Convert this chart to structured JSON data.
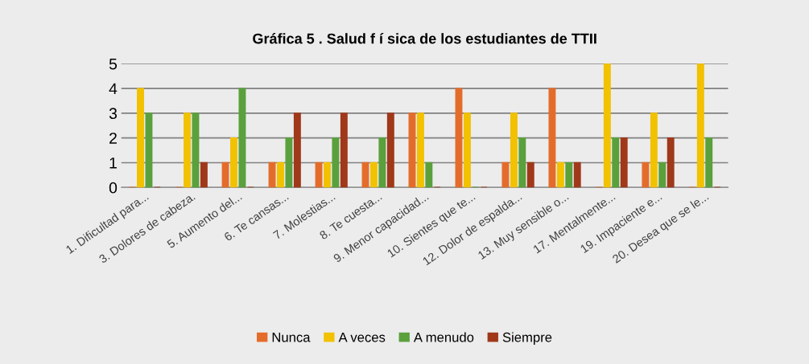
{
  "chart_data": {
    "type": "bar",
    "title": "Gráfica 5 . Salud f í sica de los estudiantes de TTII",
    "categories": [
      "1. Dificultad para...",
      "3. Dolores de cabeza.",
      "5. Aumento del...",
      "6. Te cansas...",
      "7. Molestias...",
      "8. Te cuesta...",
      "9. Menor capacidad...",
      "10. Sientes que te...",
      "12. Dolor de espalda...",
      "13. Muy sensible o...",
      "17. Mentalmente...",
      "19. Impaciente e...",
      "20. Desea que se le..."
    ],
    "series": [
      {
        "name": "Nunca",
        "color": "#e46c2a",
        "values": [
          0,
          0,
          1,
          1,
          1,
          1,
          3,
          4,
          1,
          4,
          0,
          1,
          0
        ]
      },
      {
        "name": "A veces",
        "color": "#f2c100",
        "values": [
          4,
          3,
          2,
          1,
          1,
          1,
          3,
          3,
          3,
          1,
          5,
          3,
          5
        ]
      },
      {
        "name": "A menudo",
        "color": "#5aa03c",
        "values": [
          3,
          3,
          4,
          2,
          2,
          2,
          1,
          0,
          2,
          1,
          2,
          1,
          2
        ]
      },
      {
        "name": "Siempre",
        "color": "#a0381a",
        "values": [
          0,
          1,
          0,
          3,
          3,
          3,
          0,
          0,
          1,
          1,
          2,
          2,
          0
        ]
      }
    ],
    "ylim": [
      0,
      5
    ],
    "yticks": [
      0,
      1,
      2,
      3,
      4,
      5
    ],
    "grid": "y",
    "legend": "bottom"
  }
}
